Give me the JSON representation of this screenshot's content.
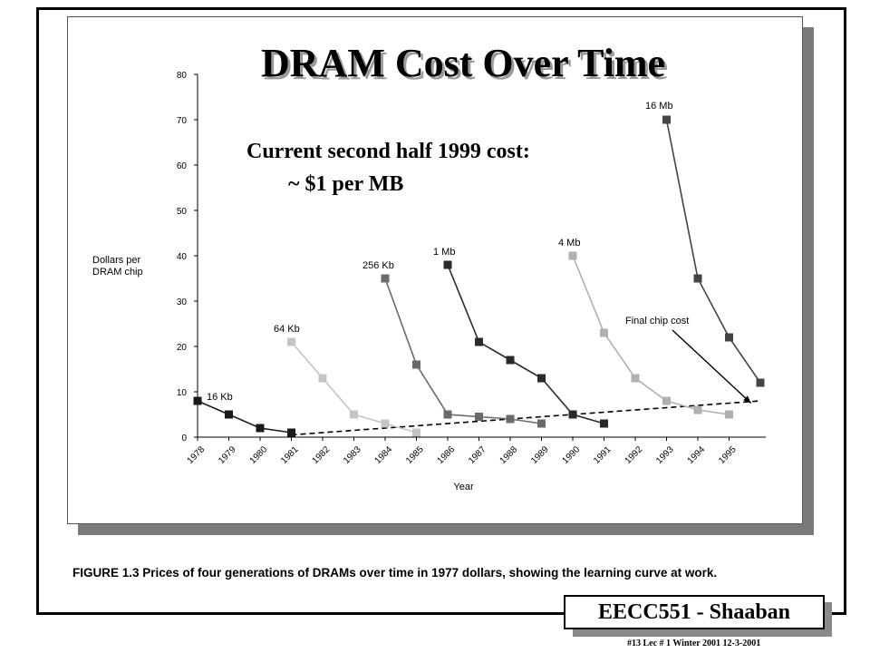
{
  "slide": {
    "title": "DRAM Cost Over Time",
    "note_line1": "Current second half 1999 cost:",
    "note_line2": "~ $1  per MB",
    "caption": "FIGURE 1.3  Prices of four generations of DRAMs over time in 1977 dollars, showing the learning curve at work.",
    "footer_title": "EECC551 - Shaaban",
    "footer_meta": "#13   Lec # 1 Winter 2001   12-3-2001"
  },
  "chart_data": {
    "type": "line",
    "xlabel": "Year",
    "ylabel_lines": [
      "Dollars per",
      "DRAM chip"
    ],
    "xlim": [
      1978,
      1996
    ],
    "ylim": [
      0,
      80
    ],
    "x_ticks": [
      "1978",
      "1979",
      "1980",
      "1981",
      "1982",
      "1983",
      "1984",
      "1985",
      "1986",
      "1987",
      "1988",
      "1989",
      "1990",
      "1991",
      "1992",
      "1993",
      "1994",
      "1995"
    ],
    "y_ticks": [
      0,
      10,
      20,
      30,
      40,
      50,
      60,
      70,
      80
    ],
    "series": [
      {
        "name": "16 Kb",
        "color": "#1a1a1a",
        "x": [
          1978,
          1979,
          1980,
          1981
        ],
        "y": [
          8,
          5,
          2,
          1
        ]
      },
      {
        "name": "64 Kb",
        "color": "#c4c4c4",
        "x": [
          1981,
          1982,
          1983,
          1984,
          1985
        ],
        "y": [
          21,
          13,
          5,
          3,
          1
        ]
      },
      {
        "name": "256 Kb",
        "color": "#6a6a6a",
        "x": [
          1984,
          1985,
          1986,
          1987,
          1988,
          1989
        ],
        "y": [
          35,
          16,
          5,
          4.5,
          4,
          3
        ]
      },
      {
        "name": "1 Mb",
        "color": "#2a2a2a",
        "x": [
          1986,
          1987,
          1988,
          1989,
          1990,
          1991
        ],
        "y": [
          38,
          21,
          17,
          13,
          5,
          3
        ]
      },
      {
        "name": "4 Mb",
        "color": "#b0b0b0",
        "x": [
          1990,
          1991,
          1992,
          1993,
          1994,
          1995
        ],
        "y": [
          40,
          23,
          13,
          8,
          6,
          5
        ]
      },
      {
        "name": "16 Mb",
        "color": "#444444",
        "x": [
          1993,
          1994,
          1995,
          1996
        ],
        "y": [
          70,
          35,
          22,
          12
        ]
      }
    ],
    "trend": {
      "name": "Final chip cost",
      "x": [
        1981,
        1996
      ],
      "y": [
        0.5,
        8
      ]
    },
    "annotation": {
      "text": "Final chip cost",
      "arrow_to": [
        1995.7,
        7.5
      ]
    }
  }
}
